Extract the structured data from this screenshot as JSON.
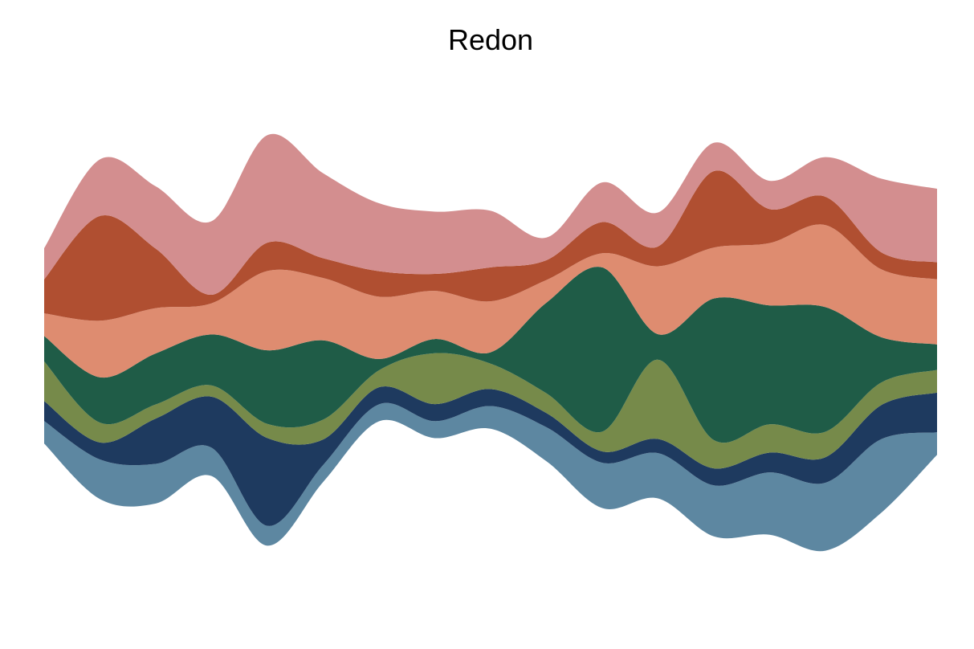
{
  "chart_data": {
    "type": "area",
    "layout": "streamgraph",
    "title": "Redon",
    "xlabel": "",
    "ylabel": "",
    "grid": false,
    "legend": "none",
    "x": [
      0,
      1,
      2,
      3,
      4,
      5,
      6,
      7,
      8,
      9,
      10,
      11,
      12,
      13,
      14,
      15,
      16
    ],
    "series": [
      {
        "color": "#5d87a1",
        "values": [
          0.4,
          0.7,
          0.7,
          0.5,
          0.35,
          0.3,
          0.3,
          0.3,
          0.4,
          0.6,
          0.8,
          0.8,
          0.9,
          1.1,
          1.2,
          1.3,
          0.4
        ]
      },
      {
        "color": "#1e3a5f",
        "values": [
          0.35,
          0.3,
          0.8,
          0.9,
          1.55,
          0.45,
          0.3,
          0.3,
          0.3,
          0.25,
          0.2,
          0.25,
          0.3,
          0.35,
          0.45,
          0.6,
          0.7
        ]
      },
      {
        "color": "#768a4a",
        "values": [
          0.7,
          0.35,
          0.25,
          0.2,
          0.25,
          0.35,
          0.3,
          0.9,
          0.45,
          0.35,
          0.35,
          1.4,
          0.5,
          0.5,
          0.45,
          0.4,
          0.4
        ]
      },
      {
        "color": "#1f5c47",
        "values": [
          0.45,
          0.8,
          0.9,
          0.9,
          1.3,
          1.4,
          0.2,
          0.25,
          0.2,
          1.6,
          2.9,
          0.45,
          2.5,
          2.1,
          2.2,
          0.8,
          0.45
        ]
      },
      {
        "color": "#de8c70",
        "values": [
          0.4,
          1.0,
          0.8,
          0.55,
          1.4,
          1.1,
          1.1,
          0.85,
          0.9,
          0.4,
          0.25,
          1.2,
          0.9,
          1.1,
          1.45,
          1.2,
          1.15
        ]
      },
      {
        "color": "#b04f31",
        "values": [
          0.6,
          1.85,
          1.05,
          0.15,
          0.5,
          0.35,
          0.45,
          0.3,
          0.6,
          0.35,
          0.55,
          0.35,
          1.35,
          0.6,
          0.5,
          0.3,
          0.3
        ]
      },
      {
        "color": "#d38e8f",
        "values": [
          0.55,
          1.0,
          1.1,
          1.3,
          1.9,
          1.5,
          1.2,
          1.1,
          1.0,
          0.4,
          0.7,
          0.6,
          0.5,
          0.5,
          0.7,
          1.3,
          1.3
        ]
      }
    ]
  }
}
